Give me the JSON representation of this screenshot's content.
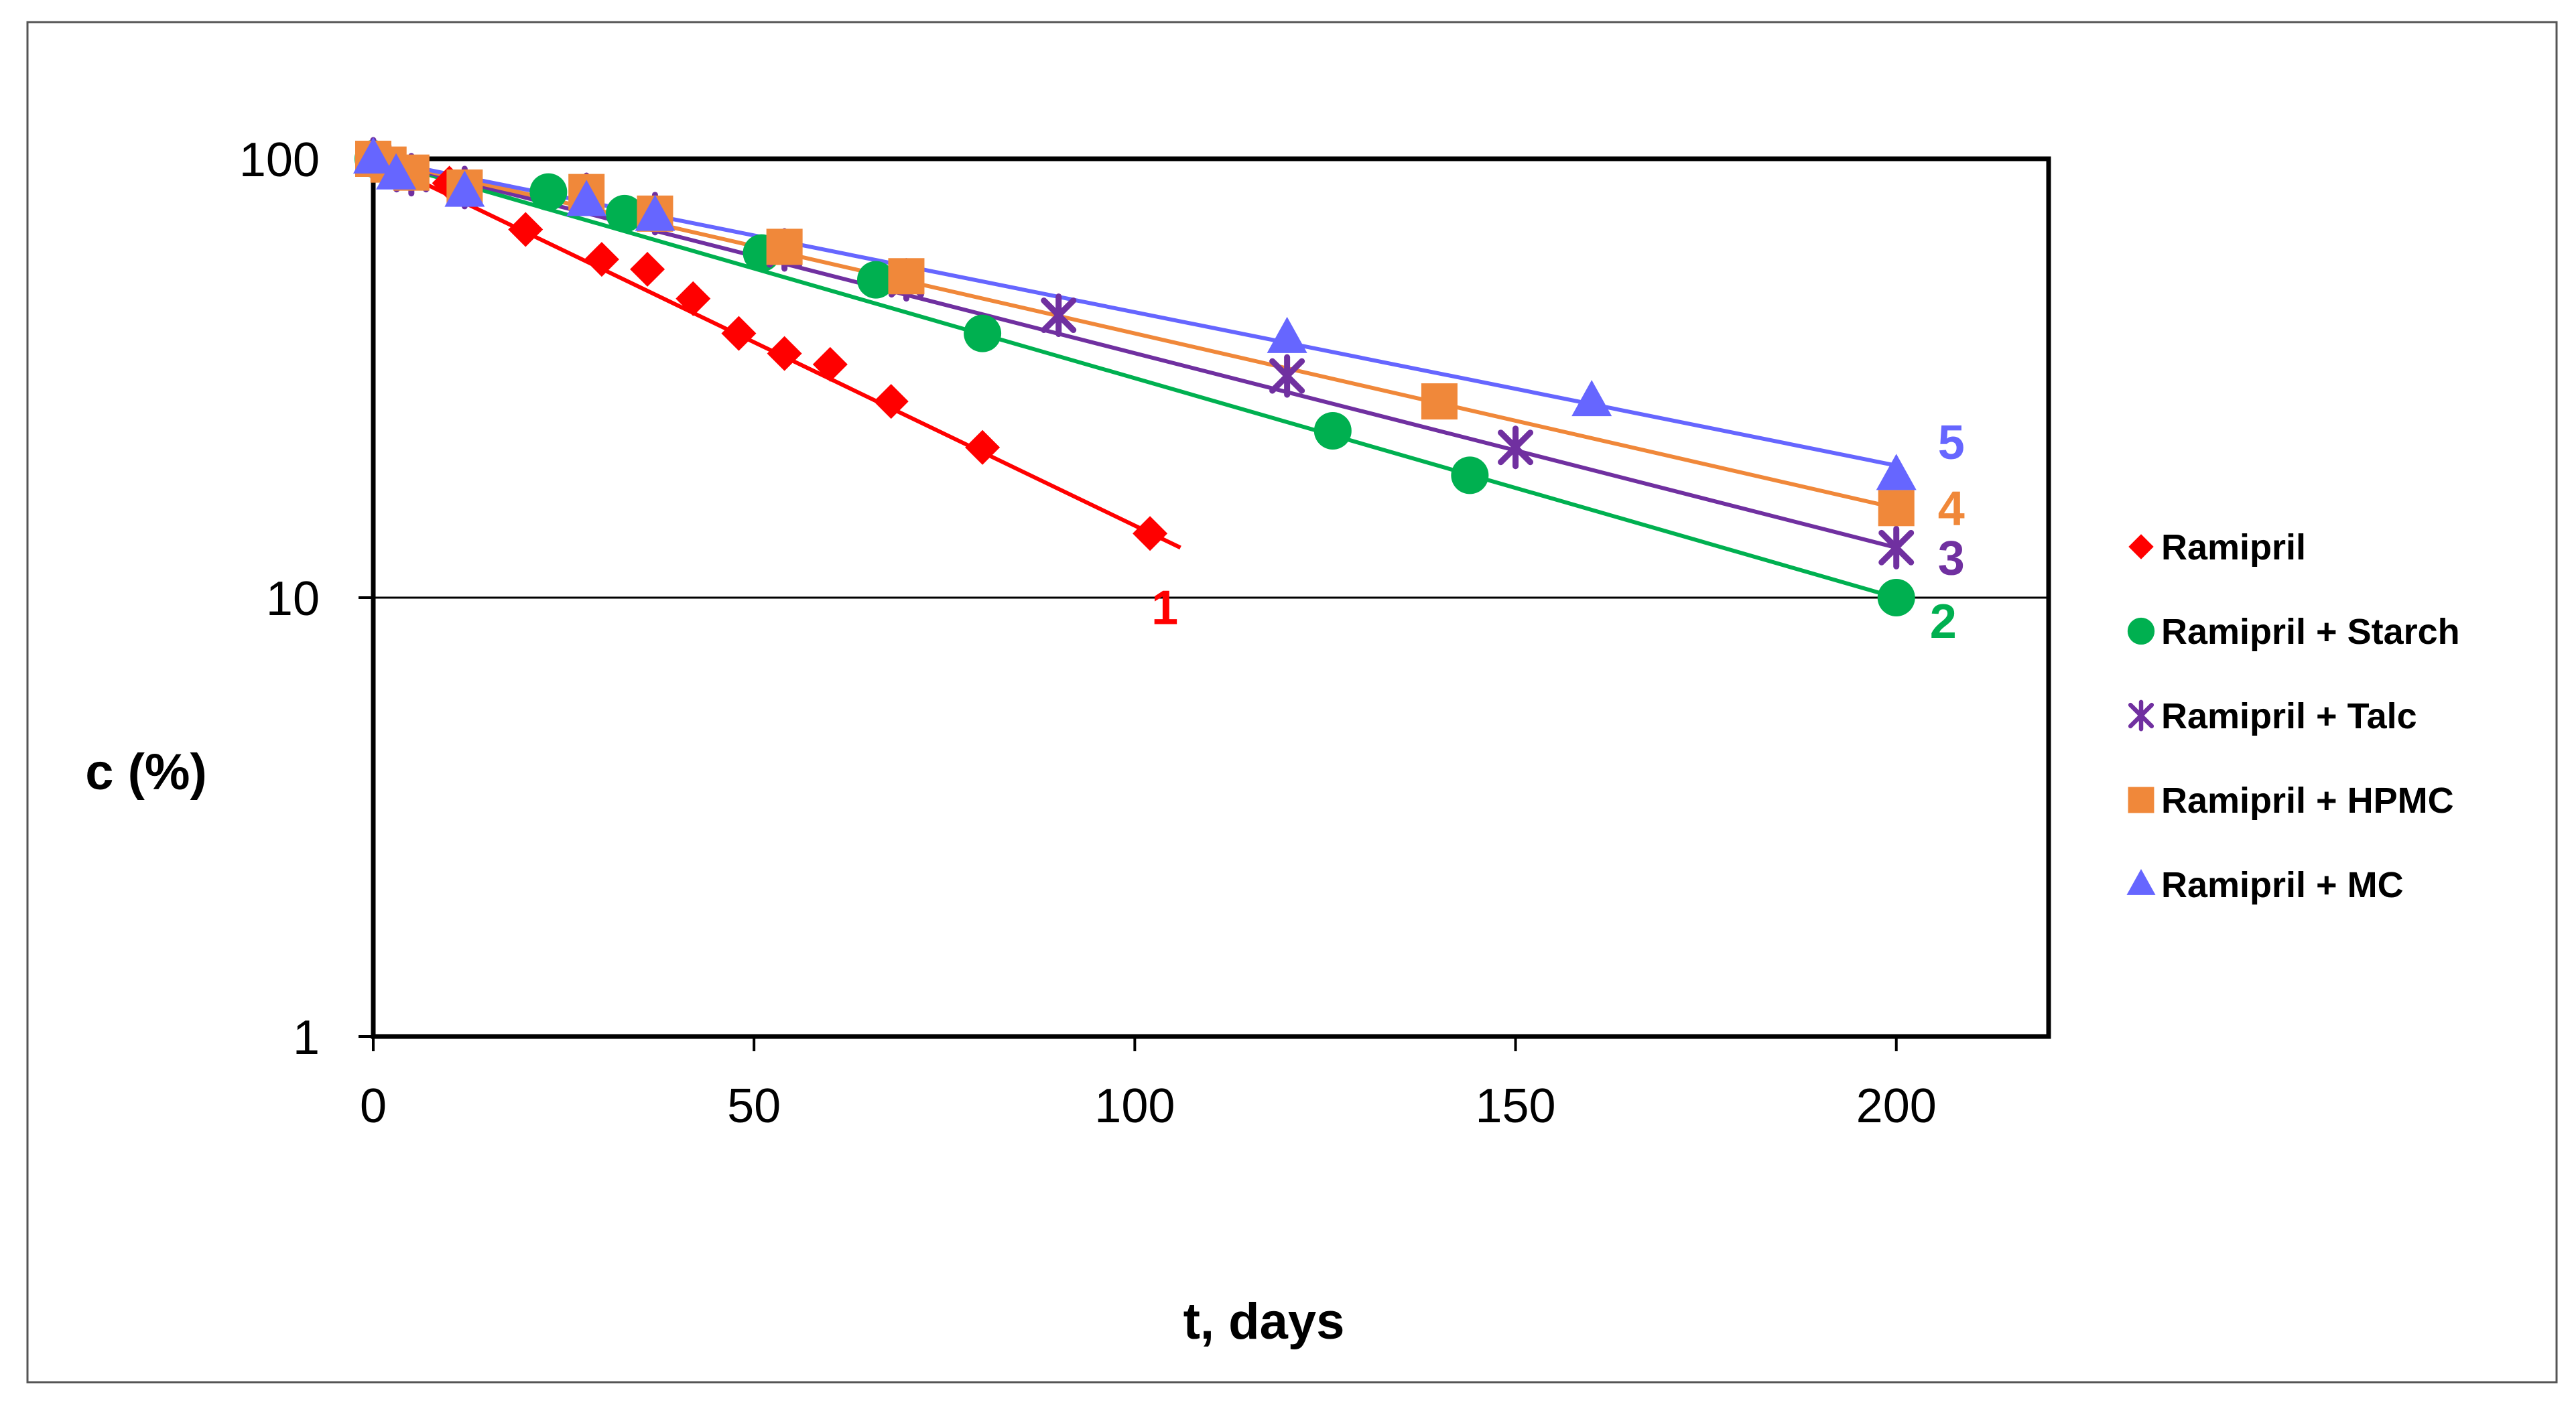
{
  "chart_data": {
    "type": "scatter",
    "title": "",
    "xlabel": "t, days",
    "ylabel": "c (%)",
    "xlim": [
      0,
      220
    ],
    "ylim": [
      1,
      100
    ],
    "yscale": "log",
    "x_ticks": [
      0,
      50,
      100,
      150,
      200
    ],
    "x_tick_labels": [
      "0",
      "50",
      "100",
      "150",
      "200"
    ],
    "y_ticks": [
      1,
      10,
      100
    ],
    "y_tick_labels": [
      "1",
      "10",
      "100"
    ],
    "grid": "horizontal at 10",
    "legend_position": "right",
    "series": [
      {
        "name": "Ramipril",
        "label": "1",
        "color": "#ff0000",
        "marker": "diamond",
        "x": [
          0,
          10,
          20,
          30,
          36,
          42,
          48,
          54,
          60,
          68,
          80,
          102
        ],
        "y": [
          100,
          88,
          69,
          59,
          56,
          48,
          40,
          36,
          34,
          28,
          22,
          14
        ],
        "fit": {
          "x": [
            0,
            106
          ],
          "y": [
            100,
            13
          ]
        }
      },
      {
        "name": "Ramipril + Starch",
        "label": "2",
        "color": "#00b050",
        "marker": "circle",
        "x": [
          0,
          23,
          33,
          51,
          66,
          80,
          126,
          144,
          200
        ],
        "y": [
          100,
          84,
          75,
          61,
          53,
          40,
          24,
          19,
          10
        ],
        "fit": {
          "x": [
            0,
            200
          ],
          "y": [
            100,
            10
          ]
        }
      },
      {
        "name": "Ramipril + Talc",
        "label": "3",
        "color": "#7030a0",
        "marker": "x",
        "x": [
          0,
          2,
          5,
          12,
          28,
          37,
          54,
          70,
          90,
          120,
          150,
          200
        ],
        "y": [
          100,
          97,
          92,
          86,
          83,
          75,
          62,
          53,
          44,
          32,
          22,
          13
        ],
        "fit": {
          "x": [
            0,
            200
          ],
          "y": [
            100,
            13
          ]
        }
      },
      {
        "name": "Ramipril + HPMC",
        "label": "4",
        "color": "#f0883a",
        "marker": "square",
        "x": [
          0,
          2,
          5,
          12,
          28,
          37,
          54,
          70,
          140,
          200
        ],
        "y": [
          100,
          97,
          93,
          86,
          84,
          75,
          63,
          54,
          28,
          16
        ],
        "fit": {
          "x": [
            0,
            200
          ],
          "y": [
            100,
            16
          ]
        }
      },
      {
        "name": "Ramipril + MC",
        "label": "5",
        "color": "#6666ff",
        "marker": "triangle",
        "x": [
          0,
          3,
          12,
          28,
          37,
          120,
          160,
          200
        ],
        "y": [
          100,
          92,
          84,
          80,
          74,
          39,
          28,
          19
        ],
        "fit": {
          "x": [
            0,
            200
          ],
          "y": [
            100,
            20
          ]
        }
      }
    ]
  }
}
